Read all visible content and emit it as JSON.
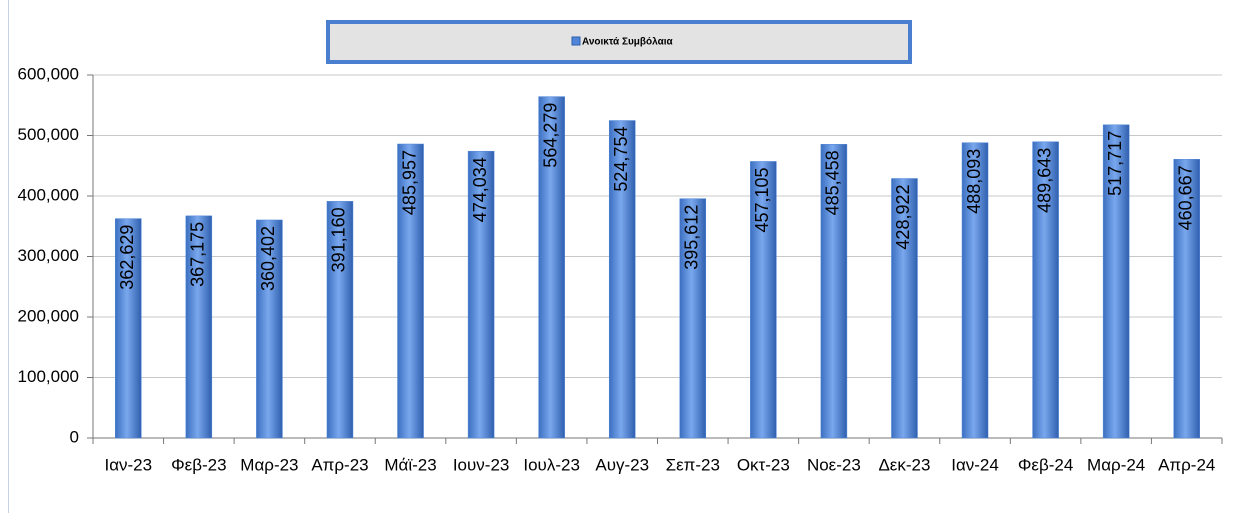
{
  "chart_data": {
    "type": "bar",
    "legend": {
      "label": "Ανοικτά Συμβόλαια"
    },
    "categories": [
      "Ιαν-23",
      "Φεβ-23",
      "Μαρ-23",
      "Απρ-23",
      "Μάϊ-23",
      "Ιουν-23",
      "Ιουλ-23",
      "Αυγ-23",
      "Σεπ-23",
      "Οκτ-23",
      "Νοε-23",
      "Δεκ-23",
      "Ιαν-24",
      "Φεβ-24",
      "Μαρ-24",
      "Απρ-24"
    ],
    "series": [
      {
        "name": "Ανοικτά Συμβόλαια",
        "color": "#4f86d9",
        "values": [
          362629,
          367175,
          360402,
          391160,
          485957,
          474034,
          564279,
          524754,
          395612,
          457105,
          485458,
          428922,
          488093,
          489643,
          517717,
          460667
        ],
        "value_labels": [
          "362,629",
          "367,175",
          "360,402",
          "391,160",
          "485,957",
          "474,034",
          "564,279",
          "524,754",
          "395,612",
          "457,105",
          "485,458",
          "428,922",
          "488,093",
          "489,643",
          "517,717",
          "460,667"
        ]
      }
    ],
    "ylim": [
      0,
      600000
    ],
    "yticks": [
      0,
      {
        "value": 100000,
        "label": "100,000"
      },
      {
        "value": 200000,
        "label": "200,000"
      },
      {
        "value": 300000,
        "label": "300,000"
      },
      {
        "value": 400000,
        "label": "400,000"
      },
      {
        "value": 500000,
        "label": "500,000"
      },
      {
        "value": 600000,
        "label": "600,000"
      }
    ],
    "grid": true
  }
}
